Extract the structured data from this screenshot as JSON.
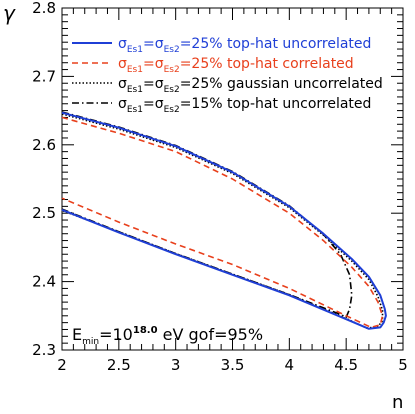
{
  "chart_data": {
    "type": "line",
    "title": "",
    "xlabel": "n",
    "ylabel": "γ",
    "xlim": [
      2,
      5
    ],
    "ylim": [
      2.3,
      2.8
    ],
    "xticks": [
      "2",
      "2.5",
      "3",
      "3.5",
      "4",
      "4.5",
      "5"
    ],
    "yticks": [
      "2.3",
      "2.4",
      "2.5",
      "2.6",
      "2.7",
      "2.8"
    ],
    "legend_position": "top",
    "annotation": {
      "base": "E",
      "sub": "min",
      "mid": "=10",
      "sup": "18.0",
      "rest": " eV gof=95%"
    },
    "series": [
      {
        "label_parts": [
          "σ",
          "Es1",
          "=σ",
          "Es2",
          "=25% top-hat uncorrelated"
        ],
        "color": "#1f3fd6",
        "style": "solid",
        "points": [
          [
            2.0,
            2.647
          ],
          [
            2.5,
            2.625
          ],
          [
            3.0,
            2.598
          ],
          [
            3.5,
            2.56
          ],
          [
            4.0,
            2.51
          ],
          [
            4.3,
            2.47
          ],
          [
            4.55,
            2.433
          ],
          [
            4.7,
            2.407
          ],
          [
            4.8,
            2.38
          ],
          [
            4.84,
            2.36
          ],
          [
            4.85,
            2.35
          ],
          [
            4.83,
            2.34
          ],
          [
            4.8,
            2.333
          ],
          [
            4.7,
            2.331
          ],
          [
            4.5,
            2.345
          ],
          [
            4.0,
            2.38
          ],
          [
            3.5,
            2.41
          ],
          [
            3.0,
            2.44
          ],
          [
            2.5,
            2.472
          ],
          [
            2.0,
            2.505
          ]
        ]
      },
      {
        "label_parts": [
          "σ",
          "Es1",
          "=σ",
          "Es2",
          "=25% top-hat correlated"
        ],
        "color": "#e8401c",
        "style": "dashed",
        "points": [
          [
            2.0,
            2.64
          ],
          [
            2.5,
            2.617
          ],
          [
            3.0,
            2.59
          ],
          [
            3.5,
            2.55
          ],
          [
            4.0,
            2.5
          ],
          [
            4.3,
            2.46
          ],
          [
            4.55,
            2.421
          ],
          [
            4.7,
            2.393
          ],
          [
            4.78,
            2.37
          ],
          [
            4.82,
            2.35
          ],
          [
            4.8,
            2.337
          ],
          [
            4.72,
            2.333
          ],
          [
            4.5,
            2.35
          ],
          [
            4.0,
            2.39
          ],
          [
            3.5,
            2.425
          ],
          [
            3.0,
            2.455
          ],
          [
            2.5,
            2.487
          ],
          [
            2.0,
            2.522
          ]
        ]
      },
      {
        "label_parts": [
          "σ",
          "Es1",
          "=σ",
          "Es2",
          "=25% gaussian uncorrelated"
        ],
        "color": "#000000",
        "style": "dotted",
        "points": [
          [
            2.0,
            2.645
          ],
          [
            2.5,
            2.623
          ],
          [
            3.0,
            2.596
          ],
          [
            3.5,
            2.558
          ],
          [
            4.0,
            2.508
          ],
          [
            4.3,
            2.468
          ],
          [
            4.55,
            2.43
          ],
          [
            4.7,
            2.403
          ],
          [
            4.78,
            2.378
          ],
          [
            4.82,
            2.358
          ],
          [
            4.82,
            2.343
          ],
          [
            4.78,
            2.334
          ],
          [
            4.68,
            2.332
          ],
          [
            4.5,
            2.346
          ],
          [
            4.0,
            2.381
          ],
          [
            3.5,
            2.411
          ],
          [
            3.0,
            2.441
          ],
          [
            2.5,
            2.473
          ],
          [
            2.0,
            2.504
          ]
        ]
      },
      {
        "label_parts": [
          "σ",
          "Es1",
          "=σ",
          "Es2",
          "=15% top-hat uncorrelated"
        ],
        "color": "#000000",
        "style": "dashdot",
        "points": [
          [
            2.0,
            2.648
          ],
          [
            2.5,
            2.626
          ],
          [
            3.0,
            2.599
          ],
          [
            3.5,
            2.561
          ],
          [
            4.0,
            2.511
          ],
          [
            4.3,
            2.469
          ],
          [
            4.45,
            2.44
          ],
          [
            4.53,
            2.41
          ],
          [
            4.55,
            2.38
          ],
          [
            4.53,
            2.36
          ],
          [
            4.5,
            2.348
          ],
          [
            4.45,
            2.352
          ],
          [
            4.0,
            2.381
          ],
          [
            3.5,
            2.411
          ],
          [
            3.0,
            2.441
          ],
          [
            2.5,
            2.473
          ],
          [
            2.0,
            2.506
          ]
        ]
      }
    ]
  }
}
